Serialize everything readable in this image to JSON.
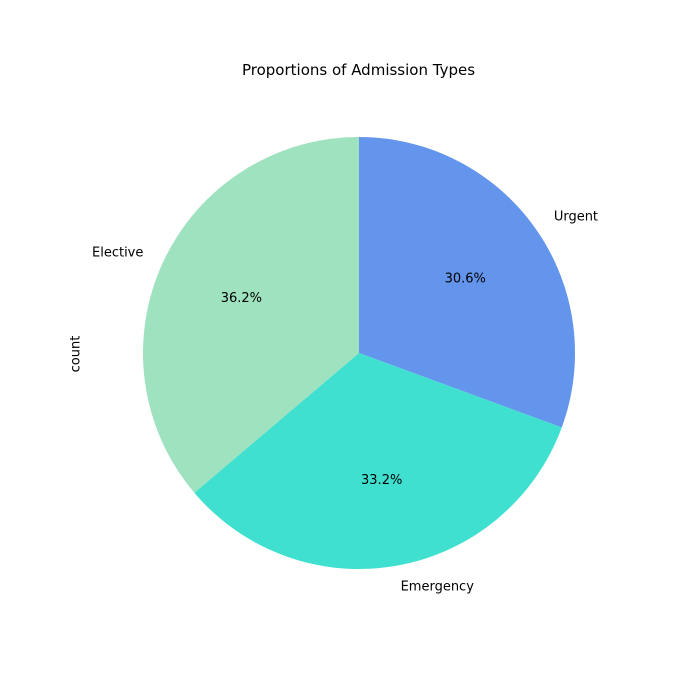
{
  "chart_data": {
    "type": "pie",
    "title": "Proportions of Admission Types",
    "ylabel": "count",
    "categories": [
      "Urgent",
      "Emergency",
      "Elective"
    ],
    "values": [
      30.6,
      33.2,
      36.2
    ],
    "percent_labels": [
      "30.6%",
      "33.2%",
      "36.2%"
    ],
    "colors": [
      "#6495ED",
      "#40E0D0",
      "#9FE2BF"
    ],
    "start_angle_deg": 90,
    "direction": "clockwise",
    "legend": "none"
  }
}
